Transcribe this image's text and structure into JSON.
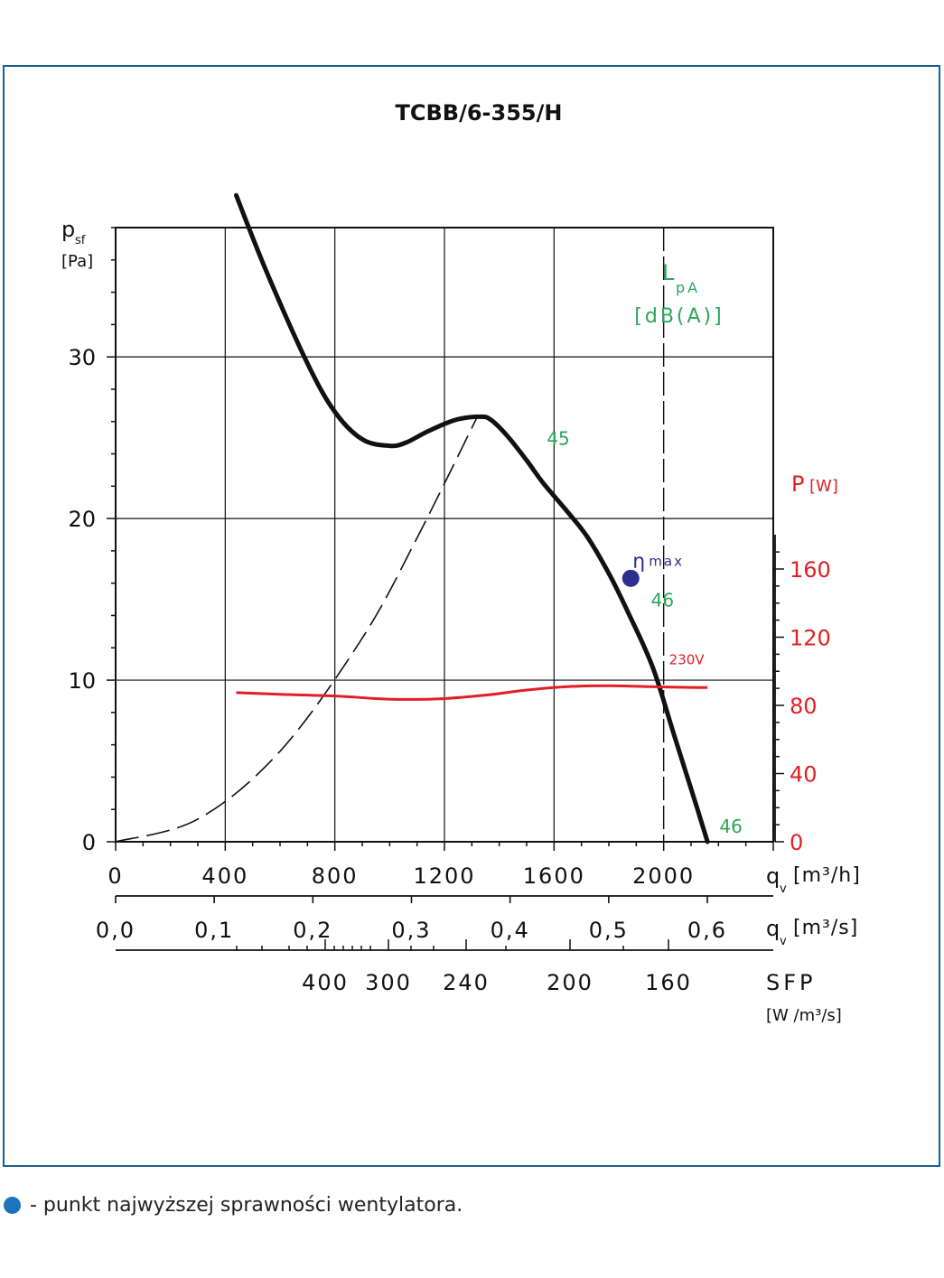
{
  "chart_data": {
    "type": "line",
    "title": "TCBB/6-355/H",
    "colors": {
      "pressure_curve": "#111111",
      "power_curve": "#e01f26",
      "lpa_text": "#2aa65a",
      "eta_point": "#2b2f8f",
      "power_axis": "#e01f26",
      "frame": "#1f5d8a",
      "legend_dot": "#1e73be"
    },
    "x_axis_flow_m3h": {
      "label": "q",
      "sub": "v",
      "unit": "[m³/h]",
      "range": [
        0,
        2400
      ],
      "ticks": [
        0,
        400,
        800,
        1200,
        1600,
        2000
      ],
      "tick_labels": [
        "0",
        "400",
        "800",
        "1200",
        "1600",
        "2000"
      ]
    },
    "x_axis_flow_m3s": {
      "label": "q",
      "sub": "v",
      "unit": "[m³/s]",
      "ticks": [
        0.0,
        0.1,
        0.2,
        0.3,
        0.4,
        0.5,
        0.6
      ],
      "tick_labels": [
        "0,0",
        "0,1",
        "0,2",
        "0,3",
        "0,4",
        "0,5",
        "0,6"
      ]
    },
    "sfp_axis": {
      "label": "SFP",
      "unit": "[W /m³/s]",
      "ticks": [
        400,
        300,
        240,
        200,
        160
      ],
      "tick_labels": [
        "400",
        "300",
        "240",
        "200",
        "160"
      ]
    },
    "y_axis_pressure": {
      "label": "p",
      "sub": "sf",
      "unit": "[Pa]",
      "range": [
        0,
        38
      ],
      "ticks": [
        0,
        10,
        20,
        30
      ],
      "tick_labels": [
        "0",
        "10",
        "20",
        "30"
      ]
    },
    "y_axis_power": {
      "label": "P",
      "unit": "[W]",
      "range": [
        0,
        180
      ],
      "ticks": [
        0,
        40,
        80,
        120,
        160
      ],
      "tick_labels": [
        "0",
        "40",
        "80",
        "120",
        "160"
      ]
    },
    "series": [
      {
        "name": "230V",
        "kind": "pressure",
        "x": [
          440,
          550,
          700,
          800,
          900,
          1000,
          1060,
          1140,
          1240,
          1330,
          1370,
          1430,
          1500,
          1560,
          1640,
          1720,
          1800,
          1870,
          1960,
          2040,
          2120,
          2160
        ],
        "y": [
          40.0,
          35.3,
          29.6,
          26.6,
          24.9,
          24.5,
          24.7,
          25.4,
          26.1,
          26.3,
          26.1,
          25.1,
          23.6,
          22.2,
          20.6,
          18.9,
          16.6,
          14.2,
          10.8,
          6.5,
          2.2,
          0.0
        ]
      },
      {
        "name": "230V",
        "kind": "power",
        "x": [
          440,
          600,
          800,
          950,
          1050,
          1200,
          1350,
          1500,
          1650,
          1800,
          1950,
          2100,
          2160
        ],
        "y": [
          87.5,
          86.5,
          85.5,
          84.0,
          83.5,
          84.0,
          86.0,
          89.0,
          91.0,
          91.5,
          91.0,
          90.5,
          90.5
        ]
      }
    ],
    "system_curve": {
      "x": [
        0,
        300,
        600,
        900,
        1100,
        1320
      ],
      "y": [
        0.0,
        1.4,
        5.6,
        12.6,
        18.8,
        26.3
      ]
    },
    "lpa_label": {
      "main": "L",
      "sub": "pA",
      "unit": "[dB(A)]"
    },
    "lpa_annotations": [
      {
        "x": 1600,
        "y": 25.0,
        "text": "45"
      },
      {
        "x": 1980,
        "y": 15.0,
        "text": "46"
      },
      {
        "x": 2230,
        "y": 1.0,
        "text": "46"
      }
    ],
    "eta_max": {
      "x": 1880,
      "y": 16.3,
      "symbol": "η",
      "label": "max"
    },
    "voltage_label": {
      "x": 2000,
      "y": 10.8,
      "text": "230V"
    }
  },
  "footer": {
    "text": "- punkt najwyższej sprawności wentylatora."
  }
}
